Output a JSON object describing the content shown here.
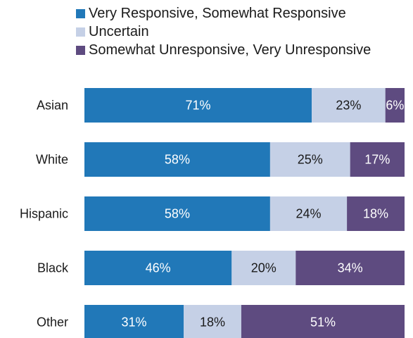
{
  "chart_data": {
    "type": "bar",
    "orientation": "horizontal",
    "stacked": true,
    "categories": [
      "Asian",
      "White",
      "Hispanic",
      "Black",
      "Other"
    ],
    "series": [
      {
        "name": "Very Responsive, Somewhat Responsive",
        "values": [
          71,
          58,
          58,
          46,
          31
        ],
        "labels": [
          "71%",
          "58%",
          "58%",
          "46%",
          "31%"
        ],
        "color": "#2178b8",
        "label_color": "#ffffff"
      },
      {
        "name": "Uncertain",
        "values": [
          23,
          25,
          24,
          20,
          18
        ],
        "labels": [
          "23%",
          "25%",
          "24%",
          "20%",
          "18%"
        ],
        "color": "#c5d0e6",
        "label_color": "#1a1a1a"
      },
      {
        "name": "Somewhat Unresponsive, Very Unresponsive",
        "values": [
          6,
          17,
          18,
          34,
          51
        ],
        "labels": [
          "6%",
          "17%",
          "18%",
          "34%",
          "51%"
        ],
        "color": "#5e4b80",
        "label_color": "#ffffff"
      }
    ],
    "xlim": [
      0,
      100
    ],
    "legend_position": "top",
    "grid": false,
    "title": "",
    "xlabel": "",
    "ylabel": ""
  }
}
